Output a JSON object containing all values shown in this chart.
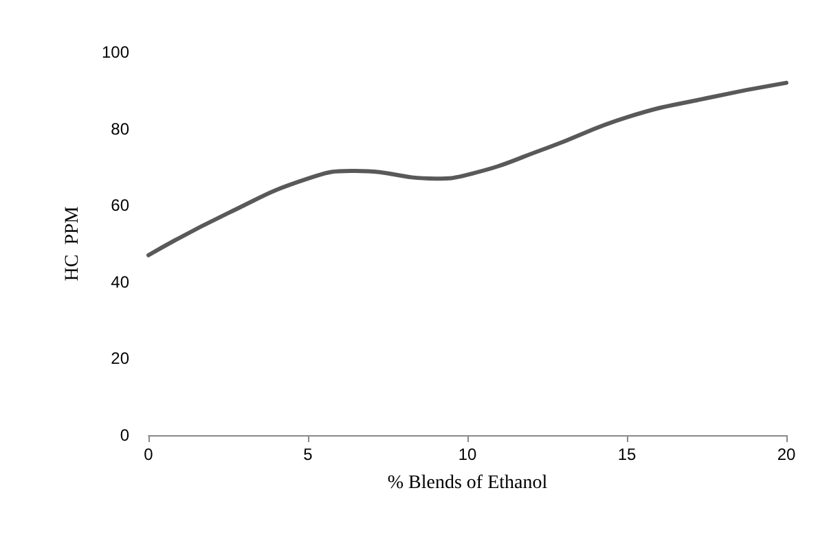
{
  "chart_data": {
    "type": "line",
    "xlabel": "% Blends of Ethanol",
    "ylabel": "HC  PPM",
    "x": [
      0,
      2.5,
      5,
      6.5,
      9,
      10,
      12.5,
      15,
      17.5,
      20
    ],
    "series": [
      {
        "color": "#595959",
        "values": [
          47,
          58,
          67,
          69,
          67,
          68,
          75,
          83,
          88,
          92
        ]
      }
    ],
    "xlim": [
      0,
      20
    ],
    "xticks": [
      0,
      5,
      10,
      15,
      20
    ],
    "ylim": [
      0,
      100
    ],
    "yticks": [
      0,
      20,
      40,
      60,
      80,
      100
    ],
    "grid": false,
    "marker": "none",
    "line_style": "solid"
  }
}
